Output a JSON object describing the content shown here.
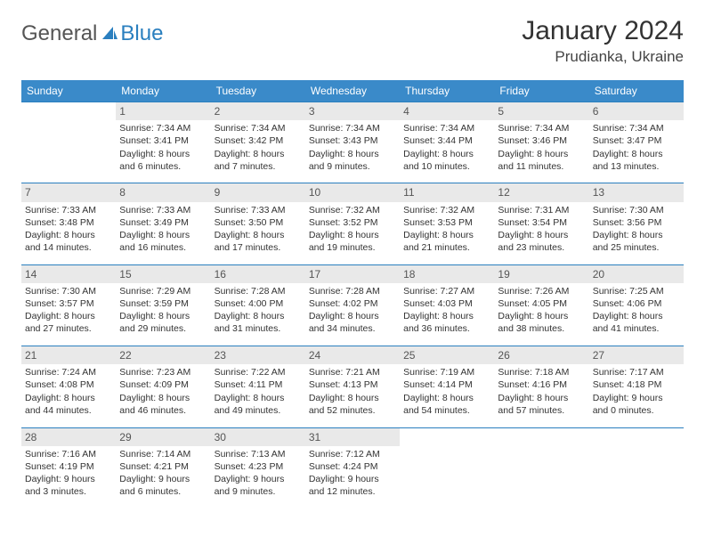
{
  "logo": {
    "part1": "General",
    "part2": "Blue"
  },
  "title": "January 2024",
  "location": "Prudianka, Ukraine",
  "colors": {
    "header_bg": "#3a8ac9",
    "header_text": "#ffffff",
    "rule": "#2a7fbf",
    "daynum_bg": "#e9e9e9",
    "logo_blue": "#2a7fbf",
    "logo_gray": "#555555"
  },
  "weekdays": [
    "Sunday",
    "Monday",
    "Tuesday",
    "Wednesday",
    "Thursday",
    "Friday",
    "Saturday"
  ],
  "weeks": [
    {
      "nums": [
        "",
        "1",
        "2",
        "3",
        "4",
        "5",
        "6"
      ],
      "cells": [
        {
          "sunrise": "",
          "sunset": "",
          "daylight": ""
        },
        {
          "sunrise": "Sunrise: 7:34 AM",
          "sunset": "Sunset: 3:41 PM",
          "daylight": "Daylight: 8 hours and 6 minutes."
        },
        {
          "sunrise": "Sunrise: 7:34 AM",
          "sunset": "Sunset: 3:42 PM",
          "daylight": "Daylight: 8 hours and 7 minutes."
        },
        {
          "sunrise": "Sunrise: 7:34 AM",
          "sunset": "Sunset: 3:43 PM",
          "daylight": "Daylight: 8 hours and 9 minutes."
        },
        {
          "sunrise": "Sunrise: 7:34 AM",
          "sunset": "Sunset: 3:44 PM",
          "daylight": "Daylight: 8 hours and 10 minutes."
        },
        {
          "sunrise": "Sunrise: 7:34 AM",
          "sunset": "Sunset: 3:46 PM",
          "daylight": "Daylight: 8 hours and 11 minutes."
        },
        {
          "sunrise": "Sunrise: 7:34 AM",
          "sunset": "Sunset: 3:47 PM",
          "daylight": "Daylight: 8 hours and 13 minutes."
        }
      ]
    },
    {
      "nums": [
        "7",
        "8",
        "9",
        "10",
        "11",
        "12",
        "13"
      ],
      "cells": [
        {
          "sunrise": "Sunrise: 7:33 AM",
          "sunset": "Sunset: 3:48 PM",
          "daylight": "Daylight: 8 hours and 14 minutes."
        },
        {
          "sunrise": "Sunrise: 7:33 AM",
          "sunset": "Sunset: 3:49 PM",
          "daylight": "Daylight: 8 hours and 16 minutes."
        },
        {
          "sunrise": "Sunrise: 7:33 AM",
          "sunset": "Sunset: 3:50 PM",
          "daylight": "Daylight: 8 hours and 17 minutes."
        },
        {
          "sunrise": "Sunrise: 7:32 AM",
          "sunset": "Sunset: 3:52 PM",
          "daylight": "Daylight: 8 hours and 19 minutes."
        },
        {
          "sunrise": "Sunrise: 7:32 AM",
          "sunset": "Sunset: 3:53 PM",
          "daylight": "Daylight: 8 hours and 21 minutes."
        },
        {
          "sunrise": "Sunrise: 7:31 AM",
          "sunset": "Sunset: 3:54 PM",
          "daylight": "Daylight: 8 hours and 23 minutes."
        },
        {
          "sunrise": "Sunrise: 7:30 AM",
          "sunset": "Sunset: 3:56 PM",
          "daylight": "Daylight: 8 hours and 25 minutes."
        }
      ]
    },
    {
      "nums": [
        "14",
        "15",
        "16",
        "17",
        "18",
        "19",
        "20"
      ],
      "cells": [
        {
          "sunrise": "Sunrise: 7:30 AM",
          "sunset": "Sunset: 3:57 PM",
          "daylight": "Daylight: 8 hours and 27 minutes."
        },
        {
          "sunrise": "Sunrise: 7:29 AM",
          "sunset": "Sunset: 3:59 PM",
          "daylight": "Daylight: 8 hours and 29 minutes."
        },
        {
          "sunrise": "Sunrise: 7:28 AM",
          "sunset": "Sunset: 4:00 PM",
          "daylight": "Daylight: 8 hours and 31 minutes."
        },
        {
          "sunrise": "Sunrise: 7:28 AM",
          "sunset": "Sunset: 4:02 PM",
          "daylight": "Daylight: 8 hours and 34 minutes."
        },
        {
          "sunrise": "Sunrise: 7:27 AM",
          "sunset": "Sunset: 4:03 PM",
          "daylight": "Daylight: 8 hours and 36 minutes."
        },
        {
          "sunrise": "Sunrise: 7:26 AM",
          "sunset": "Sunset: 4:05 PM",
          "daylight": "Daylight: 8 hours and 38 minutes."
        },
        {
          "sunrise": "Sunrise: 7:25 AM",
          "sunset": "Sunset: 4:06 PM",
          "daylight": "Daylight: 8 hours and 41 minutes."
        }
      ]
    },
    {
      "nums": [
        "21",
        "22",
        "23",
        "24",
        "25",
        "26",
        "27"
      ],
      "cells": [
        {
          "sunrise": "Sunrise: 7:24 AM",
          "sunset": "Sunset: 4:08 PM",
          "daylight": "Daylight: 8 hours and 44 minutes."
        },
        {
          "sunrise": "Sunrise: 7:23 AM",
          "sunset": "Sunset: 4:09 PM",
          "daylight": "Daylight: 8 hours and 46 minutes."
        },
        {
          "sunrise": "Sunrise: 7:22 AM",
          "sunset": "Sunset: 4:11 PM",
          "daylight": "Daylight: 8 hours and 49 minutes."
        },
        {
          "sunrise": "Sunrise: 7:21 AM",
          "sunset": "Sunset: 4:13 PM",
          "daylight": "Daylight: 8 hours and 52 minutes."
        },
        {
          "sunrise": "Sunrise: 7:19 AM",
          "sunset": "Sunset: 4:14 PM",
          "daylight": "Daylight: 8 hours and 54 minutes."
        },
        {
          "sunrise": "Sunrise: 7:18 AM",
          "sunset": "Sunset: 4:16 PM",
          "daylight": "Daylight: 8 hours and 57 minutes."
        },
        {
          "sunrise": "Sunrise: 7:17 AM",
          "sunset": "Sunset: 4:18 PM",
          "daylight": "Daylight: 9 hours and 0 minutes."
        }
      ]
    },
    {
      "nums": [
        "28",
        "29",
        "30",
        "31",
        "",
        "",
        ""
      ],
      "cells": [
        {
          "sunrise": "Sunrise: 7:16 AM",
          "sunset": "Sunset: 4:19 PM",
          "daylight": "Daylight: 9 hours and 3 minutes."
        },
        {
          "sunrise": "Sunrise: 7:14 AM",
          "sunset": "Sunset: 4:21 PM",
          "daylight": "Daylight: 9 hours and 6 minutes."
        },
        {
          "sunrise": "Sunrise: 7:13 AM",
          "sunset": "Sunset: 4:23 PM",
          "daylight": "Daylight: 9 hours and 9 minutes."
        },
        {
          "sunrise": "Sunrise: 7:12 AM",
          "sunset": "Sunset: 4:24 PM",
          "daylight": "Daylight: 9 hours and 12 minutes."
        },
        {
          "sunrise": "",
          "sunset": "",
          "daylight": ""
        },
        {
          "sunrise": "",
          "sunset": "",
          "daylight": ""
        },
        {
          "sunrise": "",
          "sunset": "",
          "daylight": ""
        }
      ]
    }
  ]
}
